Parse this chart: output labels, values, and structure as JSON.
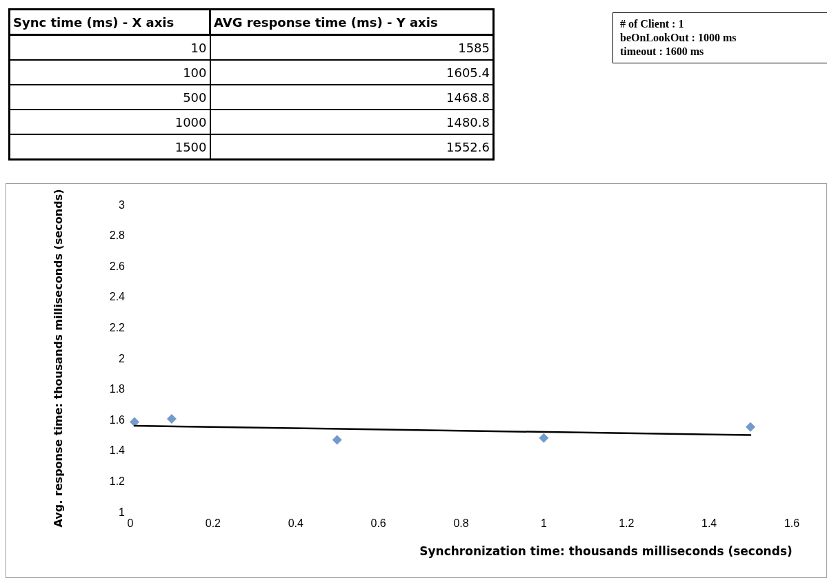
{
  "chart_data": {
    "type": "scatter",
    "xlabel": "Synchronization time: thousands milliseconds (seconds)",
    "ylabel": "Avg. response time: thousands milliseconds (seconds)",
    "annotations": [
      "Sync time (ms) - X axis",
      "AVG response time (ms) - Y axis",
      "10",
      "1585",
      "100",
      "1605.4",
      "500",
      "1468.8",
      "1000",
      "1480.8",
      "1500",
      "1552.6",
      "# of Client : 1",
      "beOnLookOut : 1000 ms",
      "timeout : 1600 ms"
    ],
    "series": [
      {
        "color": "#4f81bd",
        "marker": "diamond",
        "x": [
          0.01,
          0.1,
          0.5,
          1.0,
          1.5
        ],
        "values": [
          1.585,
          1.605,
          1.469,
          1.481,
          1.553
        ]
      },
      {
        "type": "line",
        "color": "#000000",
        "marker": "none",
        "line_style": "solid",
        "x": [
          0.01,
          1.5
        ],
        "values": [
          1.56,
          1.5
        ]
      }
    ],
    "xlim": [
      0,
      1.6
    ],
    "xticks": [
      0,
      0.2,
      0.4,
      0.6,
      0.8,
      1,
      1.2,
      1.4,
      1.6
    ],
    "ylim": [
      1,
      3
    ],
    "yticks": [
      1,
      1.2,
      1.4,
      1.6,
      1.8,
      2,
      2.2,
      2.4,
      2.6,
      2.8,
      3
    ],
    "grid": false
  }
}
